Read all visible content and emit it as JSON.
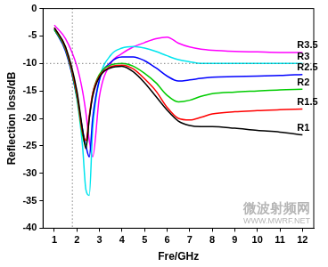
{
  "chart_data": {
    "type": "line",
    "xlabel": "Fre/GHz",
    "ylabel": "Reflection loss/dB",
    "x": [
      1,
      1.5,
      2,
      2.25,
      2.4,
      2.55,
      2.7,
      3,
      3.5,
      4,
      4.5,
      5,
      5.5,
      6,
      6.5,
      7,
      7.5,
      8,
      9,
      10,
      11,
      12
    ],
    "series": [
      {
        "name": "R1",
        "color": "#000000",
        "values": [
          -3.5,
          -7,
          -15,
          -22,
          -25.5,
          -20,
          -16,
          -12.5,
          -10.8,
          -10.5,
          -11.5,
          -13.5,
          -16,
          -18.5,
          -20.5,
          -21.3,
          -21.5,
          -21.5,
          -21.8,
          -22.2,
          -22.5,
          -23
        ]
      },
      {
        "name": "R1.5",
        "color": "#ff0000",
        "values": [
          -3.5,
          -7.2,
          -15.5,
          -22.5,
          -24,
          -19.5,
          -15.5,
          -12.3,
          -10.6,
          -10.3,
          -11,
          -12.8,
          -15,
          -18,
          -20,
          -20.3,
          -19.8,
          -19.2,
          -18.8,
          -18.6,
          -18.4,
          -18.3
        ]
      },
      {
        "name": "R2",
        "color": "#00cc00",
        "values": [
          -3.8,
          -7.5,
          -16,
          -23,
          -25,
          -20,
          -15.5,
          -12,
          -10.3,
          -10,
          -10.5,
          -11.8,
          -13.5,
          -15.8,
          -17,
          -16.7,
          -16,
          -15.5,
          -15.2,
          -15,
          -14.8,
          -14.7
        ]
      },
      {
        "name": "R2.5",
        "color": "#0000ff",
        "values": [
          -3.8,
          -7.8,
          -16,
          -22,
          -25,
          -27,
          -20,
          -13,
          -9.8,
          -8.8,
          -8.8,
          -9.5,
          -10.8,
          -12.3,
          -13.2,
          -13,
          -12.7,
          -12.5,
          -12.4,
          -12.3,
          -12.2,
          -12
        ]
      },
      {
        "name": "R3",
        "color": "#00e5ee",
        "values": [
          -3.8,
          -7.5,
          -16.5,
          -25,
          -33,
          -34,
          -22,
          -13,
          -8.5,
          -7.2,
          -6.9,
          -7.2,
          -7.8,
          -8.6,
          -9.3,
          -9.7,
          -10,
          -10,
          -10,
          -10,
          -10,
          -10
        ]
      },
      {
        "name": "R3.5",
        "color": "#ff00ff",
        "values": [
          -3,
          -5.5,
          -10.5,
          -15,
          -19,
          -24,
          -27,
          -16,
          -10,
          -8.2,
          -7,
          -6.2,
          -5.5,
          -5.2,
          -6.3,
          -7,
          -7.4,
          -7.6,
          -7.8,
          -7.9,
          -8,
          -8
        ]
      }
    ],
    "xlim": [
      0.5,
      12.5
    ],
    "ylim": [
      -40,
      0
    ],
    "xticks": [
      1,
      2,
      3,
      4,
      5,
      6,
      7,
      8,
      9,
      10,
      11,
      12
    ],
    "yticks": [
      -40,
      -35,
      -30,
      -25,
      -20,
      -15,
      -10,
      -5,
      0
    ],
    "grid": false,
    "hlines": [
      -10
    ],
    "vlines": [
      1.8
    ],
    "watermark": [
      "微波射频网",
      "WWW.MWRF.NET"
    ]
  }
}
